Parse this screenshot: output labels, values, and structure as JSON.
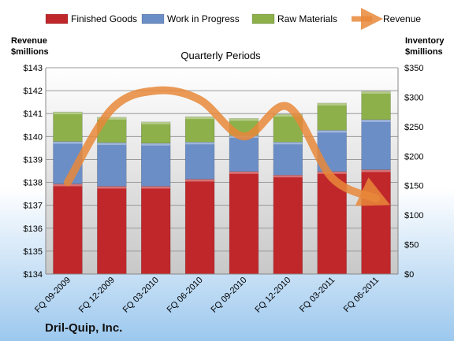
{
  "chart_data": {
    "type": "bar",
    "subtitle": "Quarterly Periods",
    "company": "Dril-Quip, Inc.",
    "y_left_label": [
      "Revenue",
      "$millions"
    ],
    "y_right_label": [
      "Inventory",
      "$millions"
    ],
    "categories": [
      "FQ 09-2009",
      "FQ 12-2009",
      "FQ 03-2010",
      "FQ 06-2010",
      "FQ 09-2010",
      "FQ 12-2010",
      "FQ 03-2011",
      "FQ 06-2011"
    ],
    "series": [
      {
        "name": "Finished Goods",
        "axis": "right",
        "color": "#c0272b",
        "values": [
          153,
          149,
          149,
          161,
          174,
          168,
          174,
          177
        ]
      },
      {
        "name": "Work in Progress",
        "axis": "right",
        "color": "#6b8ec6",
        "values": [
          72,
          74,
          73,
          63,
          61,
          56,
          70,
          85
        ]
      },
      {
        "name": "Raw Materials",
        "axis": "right",
        "color": "#8db04a",
        "values": [
          50,
          43,
          36,
          43,
          29,
          47,
          46,
          48
        ]
      },
      {
        "name": "Revenue",
        "axis": "left",
        "color": "#e8883a",
        "type": "line",
        "values": [
          138.0,
          141.2,
          142.0,
          141.6,
          140.0,
          141.3,
          138.2,
          137.3
        ]
      }
    ],
    "y_left": {
      "min": 134,
      "max": 143,
      "step": 1,
      "format": "$"
    },
    "y_right": {
      "min": 0,
      "max": 350,
      "step": 50,
      "format": "$"
    },
    "legend": "top",
    "grid": true
  }
}
